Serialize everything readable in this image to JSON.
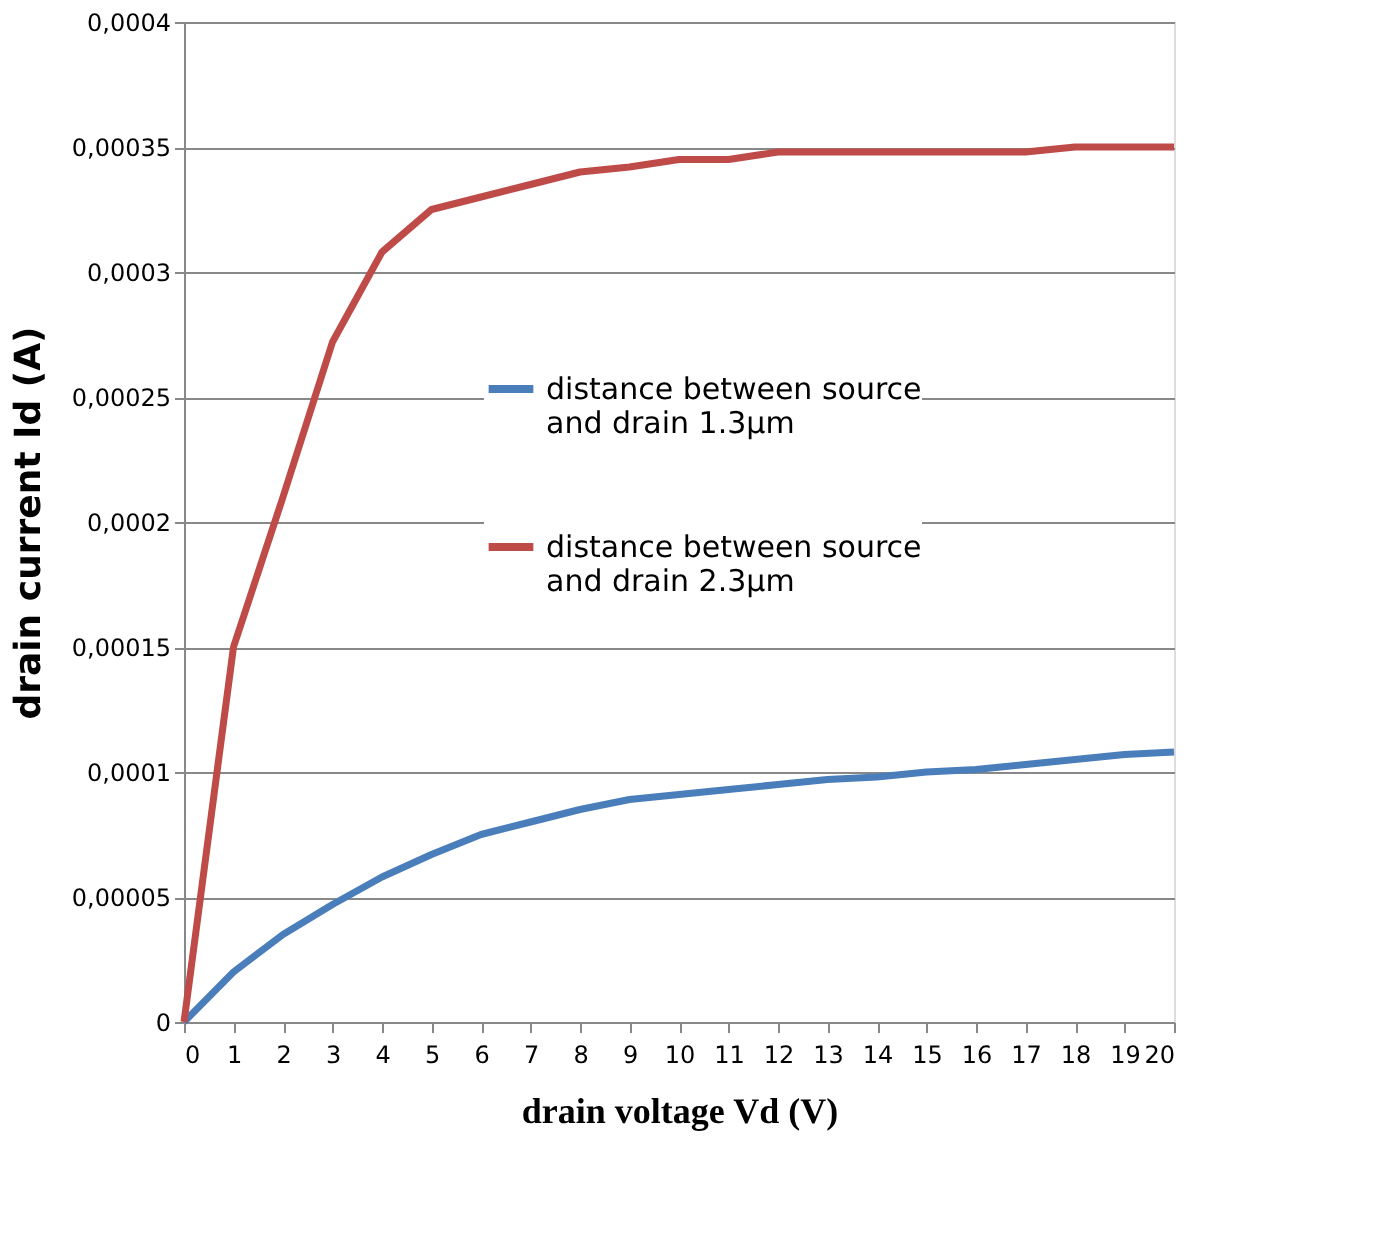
{
  "chart_data": {
    "type": "line",
    "xlabel": "drain  voltage Vd (V)",
    "ylabel": "drain current Id (A)",
    "x": [
      0,
      1,
      2,
      3,
      4,
      5,
      6,
      7,
      8,
      9,
      10,
      11,
      12,
      13,
      14,
      15,
      16,
      17,
      18,
      19,
      20
    ],
    "series": [
      {
        "name": "distance between source and drain 1.3µm",
        "color": "#4a7ebb",
        "values": [
          0,
          2e-05,
          3.5e-05,
          4.7e-05,
          5.8e-05,
          6.7e-05,
          7.5e-05,
          8e-05,
          8.5e-05,
          8.9e-05,
          9.1e-05,
          9.3e-05,
          9.5e-05,
          9.7e-05,
          9.8e-05,
          0.0001,
          0.000101,
          0.000103,
          0.000105,
          0.000107,
          0.000108
        ]
      },
      {
        "name": "distance between source and drain 2.3µm",
        "color": "#be4b48",
        "values": [
          0,
          0.00015,
          0.00021,
          0.000272,
          0.000308,
          0.000325,
          0.00033,
          0.000335,
          0.00034,
          0.000342,
          0.000345,
          0.000345,
          0.000348,
          0.000348,
          0.000348,
          0.000348,
          0.000348,
          0.000348,
          0.00035,
          0.00035,
          0.00035
        ]
      }
    ],
    "xlim": [
      0,
      20
    ],
    "xticks": [
      0,
      1,
      2,
      3,
      4,
      5,
      6,
      7,
      8,
      9,
      10,
      11,
      12,
      13,
      14,
      15,
      16,
      17,
      18,
      19,
      20
    ],
    "ylim": [
      0,
      0.0004
    ],
    "yticks": [
      {
        "value": 0,
        "label": "0"
      },
      {
        "value": 5e-05,
        "label": "0,00005"
      },
      {
        "value": 0.0001,
        "label": "0,0001"
      },
      {
        "value": 0.00015,
        "label": "0,00015"
      },
      {
        "value": 0.0002,
        "label": "0,0002"
      },
      {
        "value": 0.00025,
        "label": "0,00025"
      },
      {
        "value": 0.0003,
        "label": "0,0003"
      },
      {
        "value": 0.00035,
        "label": "0,00035"
      },
      {
        "value": 0.0004,
        "label": "0,0004"
      }
    ],
    "grid": "y",
    "legend": "right",
    "marker": "none",
    "line_style": "solid"
  }
}
